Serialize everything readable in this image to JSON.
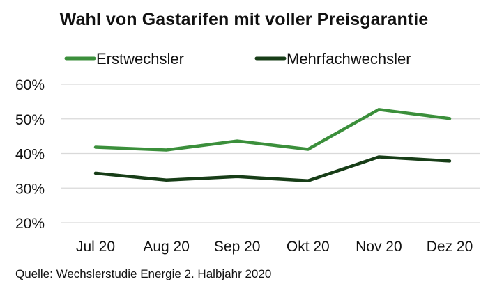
{
  "chart_data": {
    "type": "line",
    "title": "Wahl von Gastarifen mit voller Preisgarantie",
    "categories": [
      "Jul 20",
      "Aug 20",
      "Sep 20",
      "Okt 20",
      "Nov 20",
      "Dez 20"
    ],
    "series": [
      {
        "name": "Erstwechsler",
        "color": "#3b8f3b",
        "values": [
          41.8,
          41.0,
          43.6,
          41.2,
          52.7,
          50.1
        ]
      },
      {
        "name": "Mehrfachwechsler",
        "color": "#173d17",
        "values": [
          34.3,
          32.3,
          33.3,
          32.1,
          39.0,
          37.8
        ]
      }
    ],
    "y_ticks": [
      "20%",
      "30%",
      "40%",
      "50%",
      "60%"
    ],
    "y_tick_values": [
      20,
      30,
      40,
      50,
      60
    ],
    "ylim": [
      20,
      60
    ],
    "grid": true,
    "grid_color": "#d9d9d9",
    "legend_position": "top",
    "source": "Quelle: Wechslerstudie Energie  2. Halbjahr 2020"
  }
}
